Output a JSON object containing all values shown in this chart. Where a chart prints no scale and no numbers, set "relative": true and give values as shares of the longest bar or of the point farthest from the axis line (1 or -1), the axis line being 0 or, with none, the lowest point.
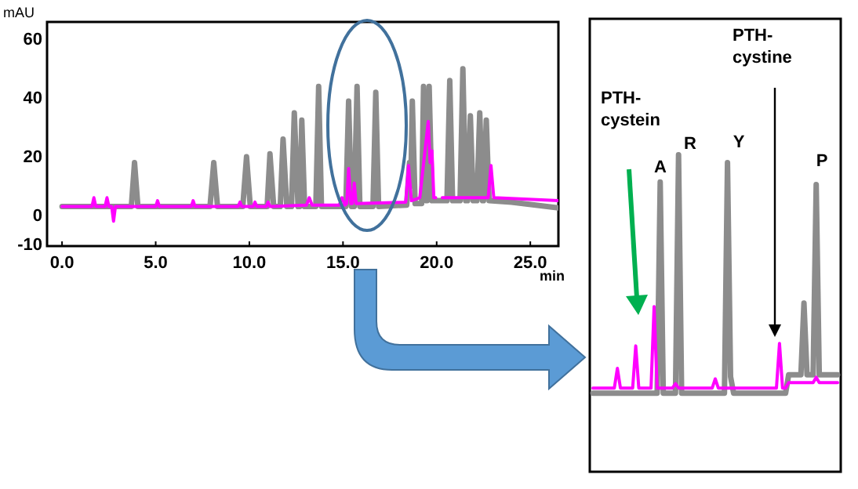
{
  "chart_data": [
    {
      "type": "line",
      "xlabel": "min",
      "ylabel": "mAU",
      "xlim": [
        -0.8,
        26.5
      ],
      "ylim": [
        -10.5,
        66
      ],
      "xticks": [
        {
          "value": 0,
          "label": "0.0"
        },
        {
          "value": 5,
          "label": "5.0"
        },
        {
          "value": 10,
          "label": "10.0"
        },
        {
          "value": 15,
          "label": "15.0"
        },
        {
          "value": 20,
          "label": "20.0"
        },
        {
          "value": 25,
          "label": "25.0"
        }
      ],
      "yticks": [
        -10,
        0,
        20,
        40,
        60
      ],
      "series": [
        {
          "color": "#8c8c8c",
          "x": [
            0,
            3.7,
            3.87,
            4.05,
            7.9,
            8.1,
            8.3,
            9.65,
            9.85,
            10.05,
            10.95,
            11.1,
            11.3,
            11.65,
            11.8,
            12.0,
            12.25,
            12.4,
            12.6,
            12.7,
            12.8,
            12.95,
            13.55,
            13.7,
            13.85,
            15.15,
            15.3,
            15.45,
            15.6,
            15.75,
            15.9,
            16.6,
            16.75,
            16.9,
            18.4,
            18.55,
            18.62,
            18.7,
            18.85,
            19.2,
            19.3,
            19.45,
            19.5,
            19.6,
            19.75,
            20.55,
            20.7,
            20.85,
            21.25,
            21.4,
            21.55,
            21.65,
            21.8,
            21.95,
            22.15,
            22.3,
            22.45,
            22.5,
            22.65,
            22.8,
            24,
            26.5
          ],
          "values": [
            3,
            3,
            18,
            3,
            3,
            18,
            3,
            3,
            20,
            3,
            3,
            21,
            3,
            3,
            26,
            3,
            3,
            35,
            3,
            3,
            32.5,
            3,
            3,
            44,
            3,
            3,
            39,
            3,
            3,
            44,
            3,
            3,
            42,
            3,
            3.5,
            18,
            10,
            39,
            4,
            4,
            44,
            5,
            5,
            44,
            5,
            5,
            46,
            5,
            5,
            50,
            5,
            5,
            34,
            5,
            5,
            35,
            5,
            5,
            32.5,
            5,
            4.5,
            2.5
          ]
        },
        {
          "color": "#ff00ff",
          "x": [
            0,
            1.6,
            1.7,
            1.8,
            2.3,
            2.4,
            2.5,
            2.65,
            2.75,
            2.85,
            5.0,
            5.1,
            5.2,
            6.9,
            7.0,
            7.1,
            9.4,
            9.5,
            9.6,
            10.2,
            10.3,
            10.4,
            10.9,
            11.0,
            11.1,
            13.05,
            13.2,
            13.35,
            14.8,
            14.95,
            15.1,
            15.2,
            15.3,
            15.42,
            15.5,
            15.6,
            15.7,
            18.35,
            18.5,
            18.65,
            19.1,
            19.55,
            19.65,
            19.75,
            19.85,
            19.95,
            20.05,
            20.15,
            20.3,
            22.75,
            22.9,
            23.05,
            26.5
          ],
          "values": [
            3,
            3,
            6,
            3,
            3,
            6,
            3,
            3,
            -2,
            3,
            3,
            5,
            3,
            3,
            5,
            3,
            3,
            4.5,
            3,
            3,
            4.5,
            3,
            3,
            4.5,
            3,
            3.5,
            6,
            3.5,
            3.5,
            6,
            3.5,
            4,
            16,
            4,
            4,
            11,
            4,
            4.5,
            17,
            5,
            6,
            32,
            18,
            22,
            6,
            6,
            null,
            null,
            6,
            6,
            17,
            6,
            5
          ]
        }
      ]
    },
    {
      "type": "line",
      "relative": true,
      "categories": [
        null,
        null,
        null,
        null,
        null,
        null,
        null,
        null,
        null,
        null,
        null,
        null,
        null,
        null,
        null,
        null,
        null,
        null,
        null,
        null,
        null,
        null,
        null,
        null,
        null,
        null,
        null,
        null,
        null,
        null,
        null,
        null,
        null,
        null,
        null,
        null,
        null,
        null,
        null,
        null,
        null,
        null,
        null,
        null,
        null,
        null,
        null,
        null,
        null,
        null,
        null,
        null,
        null,
        null,
        null,
        null,
        null,
        null,
        null,
        null,
        null,
        null,
        null,
        null,
        null,
        null,
        null,
        null,
        null,
        null,
        null,
        null,
        null,
        null,
        null,
        null,
        null,
        null,
        null,
        null,
        null
      ],
      "annotations": [
        "PTH-\ncystein",
        "PTH-\ncystine",
        "A",
        "R",
        "Y",
        "P"
      ],
      "series": [
        {
          "color": "#8c8c8c",
          "values": [
            0.248,
            0.248,
            0.248,
            0.248,
            0.248,
            0.248,
            0.248,
            0.248,
            0.248,
            0.248,
            0.248,
            0.248,
            0.248,
            0.248,
            0.248,
            0.248,
            0.248,
            0.248,
            0.248,
            0.248,
            0.248,
            0.248,
            0.914,
            0.248,
            0.248,
            0.248,
            0.248,
            0.248,
            1,
            0.248,
            0.248,
            0.248,
            0.248,
            0.248,
            0.248,
            0.248,
            0.248,
            0.248,
            0.248,
            0.248,
            0.248,
            0.248,
            0.248,
            0.248,
            0.975,
            0.3,
            0.248,
            0.248,
            0.248,
            0.248,
            0.248,
            0.248,
            0.248,
            0.248,
            0.248,
            0.248,
            0.248,
            0.248,
            0.248,
            0.248,
            0.248,
            0.248,
            0.248,
            0.248,
            0.306,
            0.306,
            0.306,
            0.306,
            0.306,
            0.532,
            0.306,
            0.306,
            0.306,
            0.906,
            0.306,
            0.306,
            0.306,
            0.306,
            0.306,
            0.306,
            0.306
          ]
        },
        {
          "color": "#ff00ff",
          "values": [
            0.264,
            0.264,
            0.264,
            0.264,
            0.264,
            0.264,
            0.264,
            0.264,
            0.326,
            0.264,
            0.264,
            0.264,
            0.264,
            0.264,
            0.397,
            0.264,
            0.264,
            0.264,
            0.264,
            0.264,
            0.521,
            0.264,
            0.264,
            0.264,
            0.264,
            0.264,
            0.264,
            0.278,
            0.264,
            0.264,
            0.264,
            0.264,
            0.264,
            0.264,
            0.264,
            0.264,
            0.264,
            0.264,
            0.264,
            0.264,
            0.293,
            0.264,
            0.264,
            0.264,
            0.264,
            0.264,
            0.264,
            0.264,
            0.264,
            0.264,
            0.264,
            0.264,
            0.264,
            0.264,
            0.264,
            0.264,
            0.264,
            0.264,
            0.264,
            0.264,
            0.264,
            0.405,
            0.264,
            0.264,
            0.281,
            0.281,
            0.281,
            0.281,
            0.281,
            0.281,
            0.281,
            0.281,
            0.281,
            0.298,
            0.281,
            0.281,
            0.281,
            0.281,
            0.281,
            0.281,
            0.281
          ]
        }
      ]
    }
  ]
}
